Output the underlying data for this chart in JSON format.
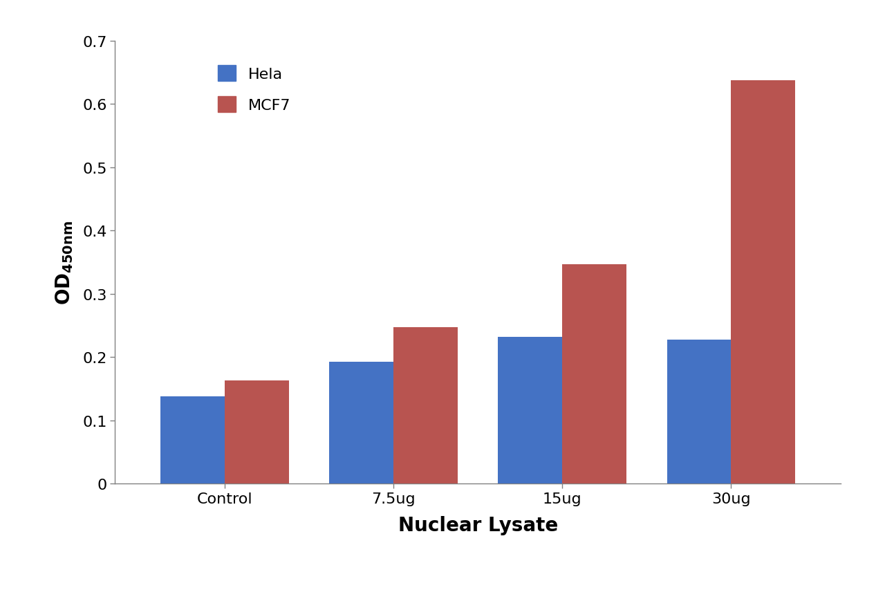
{
  "categories": [
    "Control",
    "7.5ug",
    "15ug",
    "30ug"
  ],
  "hela_values": [
    0.138,
    0.193,
    0.232,
    0.228
  ],
  "mcf7_values": [
    0.163,
    0.247,
    0.347,
    0.638
  ],
  "hela_color": "#4472C4",
  "mcf7_color": "#B85450",
  "xlabel": "Nuclear Lysate",
  "ylim": [
    0,
    0.7
  ],
  "yticks": [
    0,
    0.1,
    0.2,
    0.3,
    0.4,
    0.5,
    0.6,
    0.7
  ],
  "legend_labels": [
    "Hela",
    "MCF7"
  ],
  "bar_width": 0.38,
  "axis_label_fontsize": 20,
  "tick_fontsize": 16,
  "legend_fontsize": 16,
  "background_color": "#ffffff",
  "spine_color": "#808080"
}
